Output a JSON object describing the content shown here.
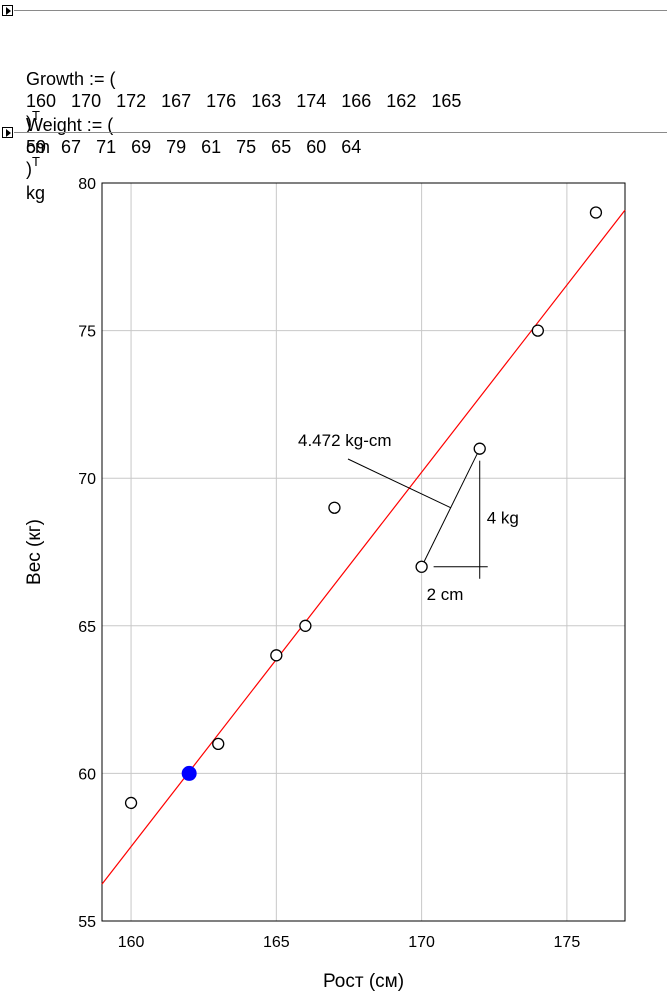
{
  "equations": {
    "growth": {
      "prefix": "Growth := (",
      "values": "160   170   172   167   176   163   174   166   162   165",
      "close": ")",
      "transpose": "T",
      "unit": "cm"
    },
    "weight": {
      "prefix": "Weight := (",
      "values": "59   67   71   69   79   61   75   65   60   64",
      "close": ")",
      "transpose": "T",
      "unit": "kg"
    }
  },
  "chart_data": {
    "type": "scatter",
    "xlabel": "Рост (см)",
    "ylabel": "Вес (кг)",
    "xlim": [
      159,
      177
    ],
    "ylim": [
      55,
      80
    ],
    "xticks": [
      160,
      165,
      170,
      175
    ],
    "yticks": [
      55,
      60,
      65,
      70,
      75,
      80
    ],
    "grid": true,
    "points": {
      "x": [
        160,
        170,
        172,
        167,
        176,
        163,
        174,
        166,
        162,
        165
      ],
      "y": [
        59,
        67,
        71,
        69,
        79,
        61,
        75,
        65,
        60,
        64
      ],
      "color": "#000000"
    },
    "highlight": {
      "x": 162,
      "y": 60,
      "color": "#0000ff"
    },
    "regression_line": {
      "x": [
        159,
        177
      ],
      "y": [
        56.25,
        79.08
      ],
      "color": "#ff0000"
    },
    "annotations": {
      "distance_label": "4.472 kg-cm",
      "dx_label": "2 cm",
      "dy_label": "4 kg",
      "p1": {
        "x": 170,
        "y": 67
      },
      "p2": {
        "x": 172,
        "y": 71
      }
    }
  }
}
